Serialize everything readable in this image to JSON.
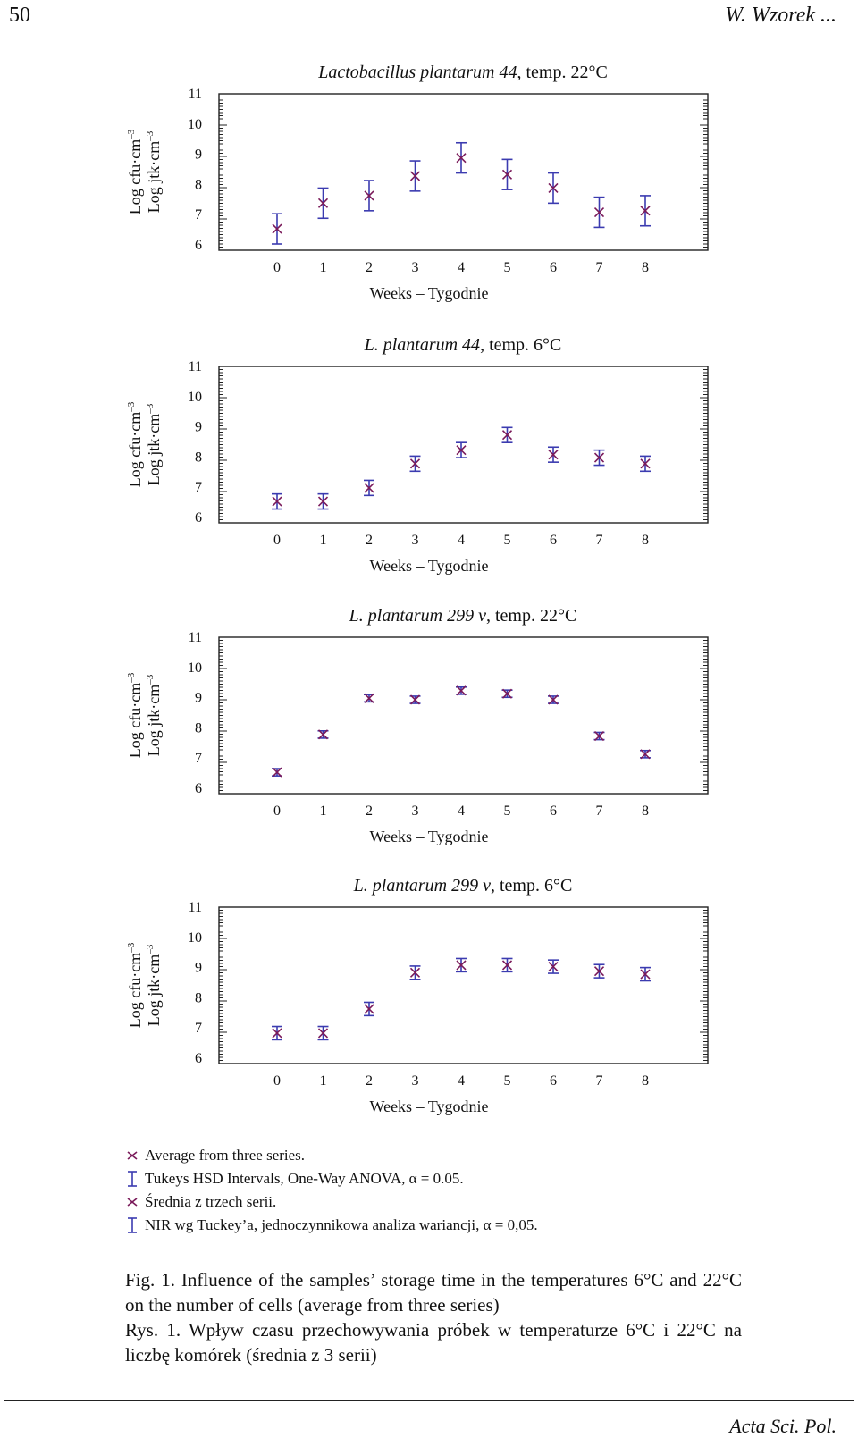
{
  "header": {
    "page_number": "50",
    "running_head": "W. Wzorek ..."
  },
  "style": {
    "series_color": "#7a1a5a",
    "errorbar_color": "#3b3bb0",
    "axis_color": "#222222"
  },
  "chart_data": [
    {
      "type": "scatter",
      "title": "Lactobacillus plantarum 44, temp. 22°C",
      "title_italic": "Lactobacillus plantarum 44",
      "title_rest": ", temp. 22°C",
      "xlabel": "Weeks – Tygodnie",
      "ylabel_en": "Log cfu·cm",
      "ylabel_pl": "Log jtk·cm",
      "ylabel_exp": "–3",
      "xlim": [
        0,
        8
      ],
      "ylim": [
        6,
        11
      ],
      "x": [
        0,
        1,
        2,
        3,
        4,
        5,
        6,
        7,
        8
      ],
      "y": [
        6.5,
        7.35,
        7.6,
        8.25,
        8.85,
        8.3,
        7.85,
        7.05,
        7.1
      ],
      "err": [
        0.5,
        0.5,
        0.5,
        0.5,
        0.5,
        0.5,
        0.5,
        0.5,
        0.5
      ],
      "xticks": [
        "0",
        "1",
        "2",
        "3",
        "4",
        "5",
        "6",
        "7",
        "8"
      ],
      "yticks": [
        "6",
        "7",
        "8",
        "9",
        "10",
        "11"
      ]
    },
    {
      "type": "scatter",
      "title": "L. plantarum 44, temp. 6°C",
      "title_italic": "L. plantarum 44",
      "title_rest": ", temp. 6°C",
      "xlabel": "Weeks – Tygodnie",
      "ylabel_en": "Log cfu·cm",
      "ylabel_pl": "Log jtk·cm",
      "ylabel_exp": "–3",
      "xlim": [
        0,
        8
      ],
      "ylim": [
        6,
        11
      ],
      "x": [
        0,
        1,
        2,
        3,
        4,
        5,
        6,
        7,
        8
      ],
      "y": [
        6.5,
        6.5,
        6.95,
        7.75,
        8.2,
        8.7,
        8.05,
        7.95,
        7.75
      ],
      "err": [
        0.25,
        0.25,
        0.25,
        0.25,
        0.25,
        0.25,
        0.25,
        0.25,
        0.25
      ],
      "xticks": [
        "0",
        "1",
        "2",
        "3",
        "4",
        "5",
        "6",
        "7",
        "8"
      ],
      "yticks": [
        "6",
        "7",
        "8",
        "9",
        "10",
        "11"
      ]
    },
    {
      "type": "scatter",
      "title": "L. plantarum 299 v, temp. 22°C",
      "title_italic": "L. plantarum 299 v",
      "title_rest": ", temp. 22°C",
      "xlabel": "Weeks – Tygodnie",
      "ylabel_en": "Log  cfu·cm",
      "ylabel_pl": "Log jtk·cm",
      "ylabel_exp": "–3",
      "xlim": [
        0,
        8
      ],
      "ylim": [
        6,
        11
      ],
      "x": [
        0,
        1,
        2,
        3,
        4,
        5,
        6,
        7,
        8
      ],
      "y": [
        6.5,
        7.75,
        8.95,
        8.9,
        9.2,
        9.1,
        8.9,
        7.7,
        7.1
      ],
      "err": [
        0.12,
        0.12,
        0.12,
        0.12,
        0.12,
        0.12,
        0.12,
        0.12,
        0.12
      ],
      "xticks": [
        "0",
        "1",
        "2",
        "3",
        "4",
        "5",
        "6",
        "7",
        "8"
      ],
      "yticks": [
        "6",
        "7",
        "8",
        "9",
        "10",
        "11"
      ]
    },
    {
      "type": "scatter",
      "title": "L. plantarum 299 v, temp. 6°C",
      "title_italic": "L. plantarum 299 v",
      "title_rest": ", temp. 6°C",
      "xlabel": "Weeks – Tygodnie",
      "ylabel_en": "Log cfu·cm",
      "ylabel_pl": "Log jtk·cm",
      "ylabel_exp": "–3",
      "xlim": [
        0,
        8
      ],
      "ylim": [
        6,
        11
      ],
      "x": [
        0,
        1,
        2,
        3,
        4,
        5,
        6,
        7,
        8
      ],
      "y": [
        6.8,
        6.8,
        7.6,
        8.8,
        9.05,
        9.05,
        9.0,
        8.85,
        8.75
      ],
      "err": [
        0.22,
        0.22,
        0.22,
        0.22,
        0.22,
        0.22,
        0.22,
        0.22,
        0.22
      ],
      "xticks": [
        "0",
        "1",
        "2",
        "3",
        "4",
        "5",
        "6",
        "7",
        "8"
      ],
      "yticks": [
        "6",
        "7",
        "8",
        "9",
        "10",
        "11"
      ]
    }
  ],
  "legend": [
    {
      "symbol": "asterisk",
      "text": "Average from three series."
    },
    {
      "symbol": "errorbar",
      "text": "Tukeys HSD Intervals, One-Way ANOVA, α = 0.05."
    },
    {
      "symbol": "asterisk",
      "text": "Średnia z trzech serii."
    },
    {
      "symbol": "errorbar",
      "text": "NIR wg Tuckey’a, jednoczynnikowa analiza wariancji, α = 0,05."
    }
  ],
  "caption": {
    "en": "Fig. 1. Influence of the samples’ storage time in the temperatures 6°C and 22°C on the number of cells (average from three series)",
    "pl": "Rys. 1. Wpływ czasu przechowywania próbek w temperaturze 6°C i 22°C na liczbę komórek (średnia z 3 serii)"
  },
  "footer": {
    "journal": "Acta Sci. Pol."
  }
}
